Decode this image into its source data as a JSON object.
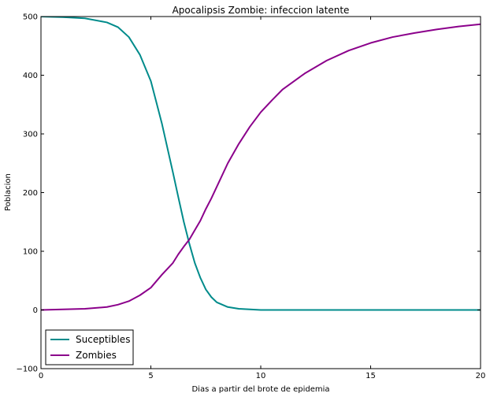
{
  "chart_data": {
    "type": "line",
    "title": "Apocalipsis Zombie: infeccion latente",
    "xlabel": "Dias a partir del brote de epidemia",
    "ylabel": "Poblacion",
    "xlim": [
      0,
      20
    ],
    "ylim": [
      -100,
      500
    ],
    "xticks": [
      "0",
      "5",
      "10",
      "15",
      "20"
    ],
    "yticks": [
      "−100",
      "0",
      "100",
      "200",
      "300",
      "400",
      "500"
    ],
    "grid": false,
    "legend_position": "lower-left",
    "x": [
      0,
      1,
      2,
      3,
      3.5,
      4,
      4.5,
      5,
      5.5,
      6,
      6.25,
      6.5,
      6.75,
      7,
      7.25,
      7.5,
      7.75,
      8,
      8.5,
      9,
      9.5,
      10,
      10.5,
      11,
      12,
      13,
      14,
      15,
      16,
      17,
      18,
      19,
      20
    ],
    "series": [
      {
        "name": "Suceptibles",
        "color": "#008b8b",
        "values": [
          500,
          499,
          497,
          490,
          482,
          465,
          435,
          390,
          318,
          235,
          192,
          150,
          113,
          80,
          55,
          35,
          22,
          13,
          5,
          2,
          1,
          0,
          0,
          0,
          0,
          0,
          0,
          0,
          0,
          0,
          0,
          0,
          0
        ]
      },
      {
        "name": "Zombies",
        "color": "#8b008b",
        "values": [
          0,
          1,
          2,
          5,
          9,
          15,
          25,
          38,
          60,
          80,
          95,
          108,
          120,
          136,
          152,
          172,
          190,
          210,
          250,
          283,
          312,
          337,
          357,
          376,
          403,
          425,
          442,
          455,
          465,
          472,
          478,
          483,
          487
        ]
      }
    ]
  }
}
